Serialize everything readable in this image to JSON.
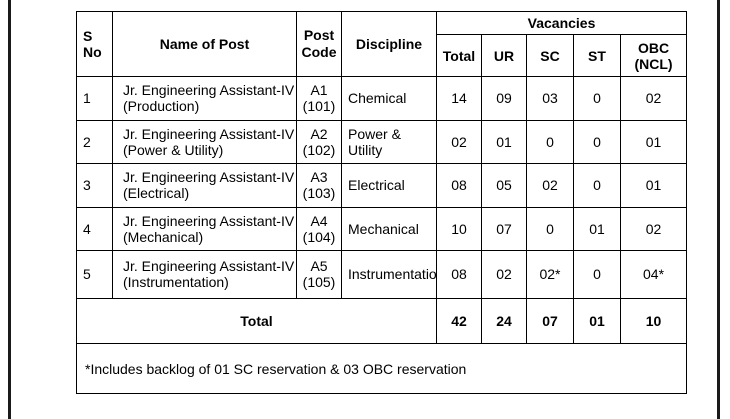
{
  "headers": {
    "sno": "S No",
    "post_name": "Name of Post",
    "post_code": "Post Code",
    "discipline": "Discipline",
    "vacancies": "Vacancies",
    "total": "Total",
    "ur": "UR",
    "sc": "SC",
    "st": "ST",
    "obc_line1": "OBC",
    "obc_line2": "(NCL)"
  },
  "rows": [
    {
      "sno": "1",
      "post_line1": "Jr. Engineering Assistant-IV",
      "post_line2": "(Production)",
      "code_line1": "A1",
      "code_line2": "(101)",
      "discipline": "Chemical",
      "total": "14",
      "ur": "09",
      "sc": "03",
      "st": "0",
      "obc": "02"
    },
    {
      "sno": "2",
      "post_line1": "Jr. Engineering Assistant-IV",
      "post_line2": "(Power & Utility)",
      "code_line1": "A2",
      "code_line2": "(102)",
      "discipline": "Power & Utility",
      "total": "02",
      "ur": "01",
      "sc": "0",
      "st": "0",
      "obc": "01"
    },
    {
      "sno": "3",
      "post_line1": "Jr. Engineering Assistant-IV",
      "post_line2": "(Electrical)",
      "code_line1": "A3",
      "code_line2": "(103)",
      "discipline": "Electrical",
      "total": "08",
      "ur": "05",
      "sc": "02",
      "st": "0",
      "obc": "01"
    },
    {
      "sno": "4",
      "post_line1": "Jr. Engineering Assistant-IV",
      "post_line2": "(Mechanical)",
      "code_line1": "A4",
      "code_line2": "(104)",
      "discipline": "Mechanical",
      "total": "10",
      "ur": "07",
      "sc": "0",
      "st": "01",
      "obc": "02"
    },
    {
      "sno": "5",
      "post_line1": "Jr. Engineering Assistant-IV",
      "post_line2": "(Instrumentation)",
      "code_line1": "A5",
      "code_line2": "(105)",
      "discipline": "Instrumentation",
      "total": "08",
      "ur": "02",
      "sc": "02*",
      "st": "0",
      "obc": "04*"
    }
  ],
  "totals": {
    "label": "Total",
    "total": "42",
    "ur": "24",
    "sc": "07",
    "st": "01",
    "obc": "10"
  },
  "footnote": "*Includes backlog of 01 SC reservation & 03 OBC reservation"
}
